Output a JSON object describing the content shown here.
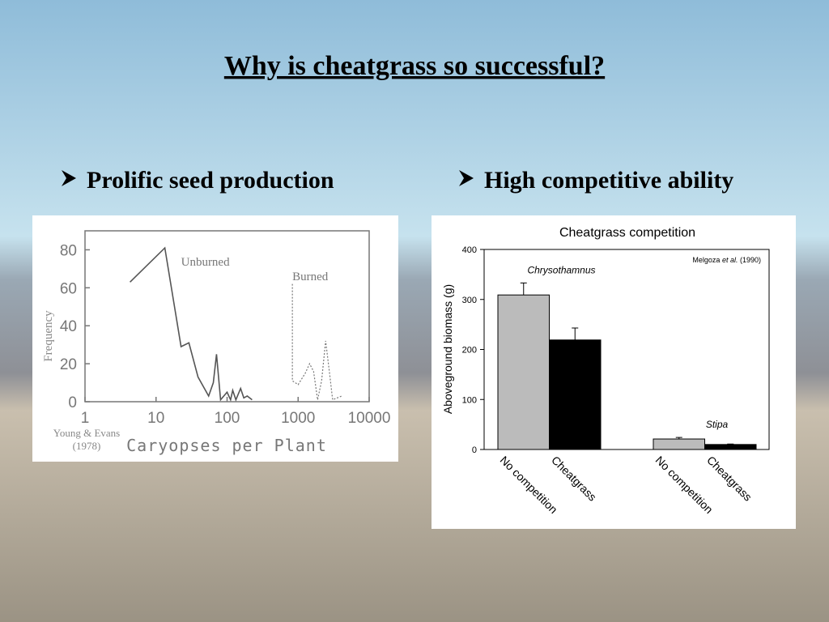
{
  "title": "Why is cheatgrass so successful?",
  "bullets": [
    "Prolific seed production",
    "High competitive ability"
  ],
  "chart_data": [
    {
      "type": "line",
      "x_label": "Caryopses per Plant",
      "y_label": "Frequency",
      "source": [
        "Young & Evans",
        "(1978)"
      ],
      "xscale": "log",
      "xlim": [
        1,
        10000
      ],
      "xticks": [
        1,
        10,
        100,
        1000,
        10000
      ],
      "ylim": [
        0,
        90
      ],
      "yticks": [
        0,
        20,
        40,
        60,
        80
      ],
      "series": [
        {
          "name": "Unburned",
          "color": "#555555",
          "style": "solid",
          "x": [
            4.3,
            13.3,
            22.5,
            29,
            39,
            55,
            64,
            71,
            81,
            100,
            112,
            120,
            133,
            155,
            172,
            192,
            225
          ],
          "values": [
            63,
            81,
            29,
            31,
            13,
            3,
            10,
            25,
            1,
            5,
            1,
            6,
            1,
            7,
            2,
            3,
            1
          ]
        },
        {
          "name": "Burned",
          "color": "#777777",
          "style": "dotted",
          "x": [
            830,
            830,
            1000,
            1260,
            1450,
            1650,
            1880,
            2140,
            2440,
            2770,
            3060,
            4100
          ],
          "values": [
            62,
            11,
            9,
            15,
            20,
            16,
            1,
            11,
            32,
            15,
            1,
            3
          ]
        }
      ]
    },
    {
      "type": "bar",
      "title": "Cheatgrass competition",
      "y_label": "Aboveground biomass (g)",
      "source": [
        "Melgoza ",
        "et al.",
        " (1990)"
      ],
      "ylim": [
        0,
        400
      ],
      "yticks": [
        0,
        100,
        200,
        300,
        400
      ],
      "categories": [
        "No competition",
        "Cheatgrass"
      ],
      "colors": [
        "#bbbbbb",
        "#000000"
      ],
      "groups": [
        {
          "name": "Chrysothamnus",
          "values": [
            309,
            219
          ],
          "errors": [
            24,
            24
          ]
        },
        {
          "name": "Stipa",
          "values": [
            21,
            10
          ],
          "errors": [
            3,
            1
          ]
        }
      ]
    }
  ]
}
